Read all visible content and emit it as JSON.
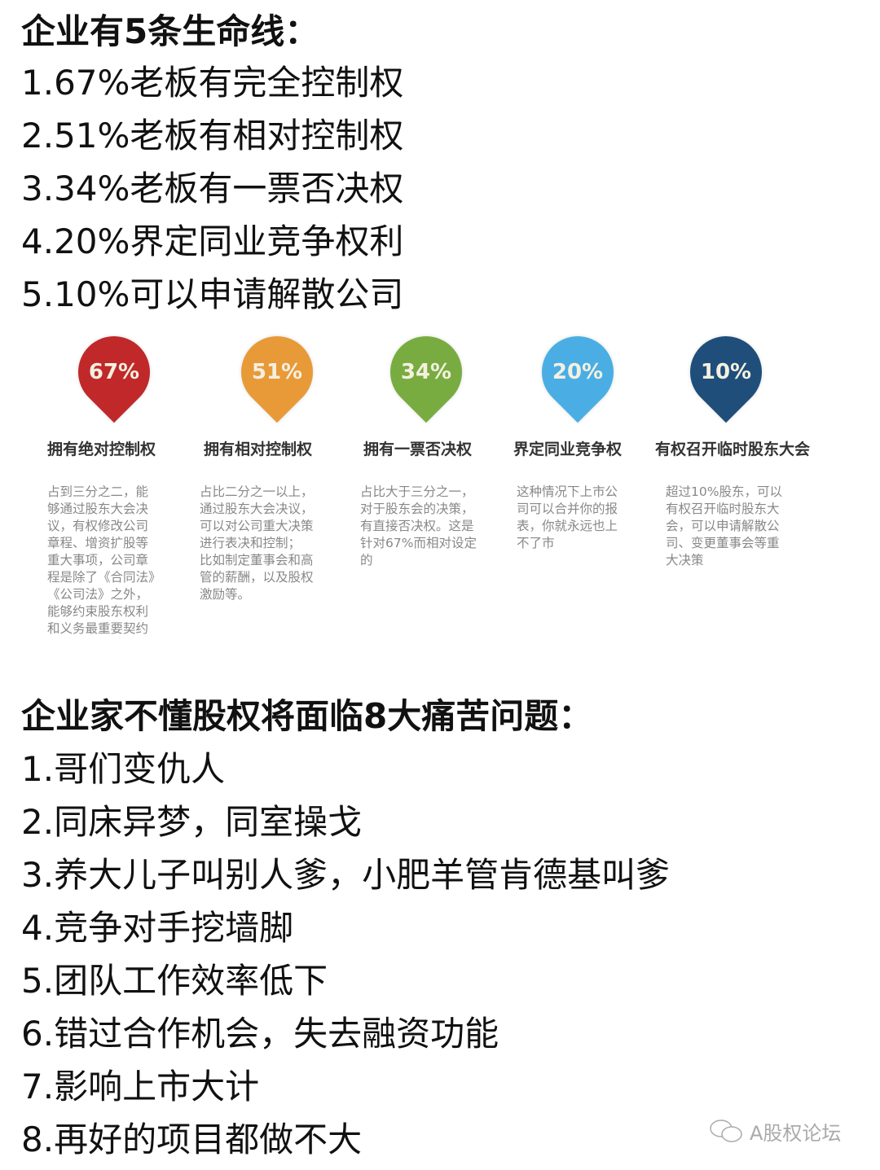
{
  "section1": {
    "title": "企业有5条生命线：",
    "items": [
      "1.67%老板有完全控制权",
      "2.51%老板有相对控制权",
      "3.34%老板有一票否决权",
      "4.20%界定同业竞争权利",
      "5.10%可以申请解散公司"
    ]
  },
  "infographic": [
    {
      "pct": "67%",
      "color": "#c0282a",
      "label": "拥有绝对控制权",
      "lines": [
        "占到三分之二，能",
        "够通过股东大会决",
        "议，有权修改公司",
        "章程、增资扩股等",
        "重大事项，公司章",
        "程是除了《合同法》",
        "《公司法》之外，",
        "能够约束股东权利",
        "和义务最重要契约"
      ]
    },
    {
      "pct": "51%",
      "color": "#e89a38",
      "label": "拥有相对控制权",
      "lines": [
        "占比二分之一以上，",
        "通过股东大会决议，",
        "可以对公司重大决策",
        "进行表决和控制；",
        "比如制定董事会和高",
        "管的薪酬，以及股权",
        "激励等。"
      ]
    },
    {
      "pct": "34%",
      "color": "#78ac40",
      "label": "拥有一票否决权",
      "lines": [
        "占比大于三分之一，",
        "对于股东会的决策，",
        "有直接否决权。这是",
        "针对67%而相对设定",
        "的"
      ]
    },
    {
      "pct": "20%",
      "color": "#4aaee4",
      "label": "界定同业竞争权",
      "lines": [
        "这种情况下上市公",
        "司可以合并你的报",
        "表，你就永远也上",
        "不了市"
      ]
    },
    {
      "pct": "10%",
      "color": "#1f4e7a",
      "label": "有权召开临时股东大会",
      "lines": [
        "超过10%股东，可以",
        "有权召开临时股东大",
        "会，可以申请解散公",
        "司、变更董事会等重",
        "大决策"
      ]
    }
  ],
  "section2": {
    "title": "企业家不懂股权将面临8大痛苦问题：",
    "items": [
      "1.哥们变仇人",
      "2.同床异梦，同室操戈",
      "3.养大儿子叫别人爹，小肥羊管肯德基叫爹",
      "4.竞争对手挖墙脚",
      "5.团队工作效率低下",
      "6.错过合作机会，失去融资功能",
      "7.影响上市大计",
      "8.再好的项目都做不大"
    ]
  },
  "watermark": {
    "icon": "wechat-icon",
    "text": "A股权论坛"
  }
}
